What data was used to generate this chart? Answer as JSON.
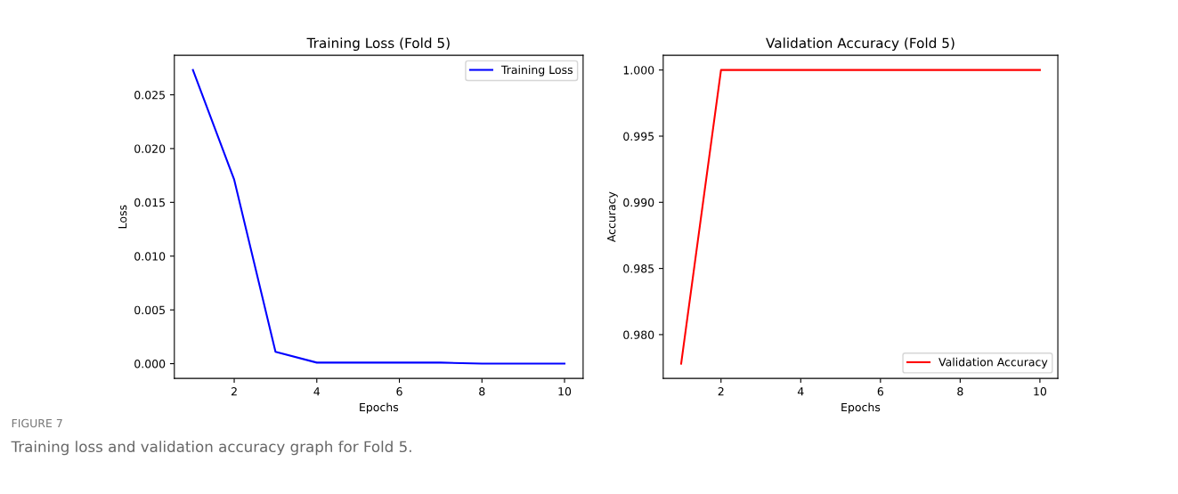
{
  "chart_data": [
    {
      "type": "line",
      "title": "Training Loss (Fold 5)",
      "xlabel": "Epochs",
      "ylabel": "Loss",
      "x": [
        1,
        2,
        3,
        4,
        5,
        6,
        7,
        8,
        9,
        10
      ],
      "series": [
        {
          "name": "Training Loss",
          "color": "#0000ff",
          "values": [
            0.0273,
            0.0171,
            0.0011,
            0.0001,
            0.0001,
            0.0001,
            0.0001,
            0.0,
            0.0,
            0.0
          ]
        }
      ],
      "xlim": [
        0.55,
        10.45
      ],
      "xticks": [
        2,
        4,
        6,
        8,
        10
      ],
      "ylim": [
        -0.00137,
        0.02867
      ],
      "yticks": [
        {
          "value": 0,
          "label": "0.000"
        },
        {
          "value": 0.005,
          "label": "0.005"
        },
        {
          "value": 0.01,
          "label": "0.010"
        },
        {
          "value": 0.015,
          "label": "0.015"
        },
        {
          "value": 0.02,
          "label": "0.020"
        },
        {
          "value": 0.025,
          "label": "0.025"
        }
      ],
      "legend": "top right",
      "grid": false,
      "annotations": [
        "FIGURE 7",
        "Training loss and validation accuracy graph for Fold 5."
      ]
    },
    {
      "type": "line",
      "title": "Validation Accuracy (Fold 5)",
      "xlabel": "Epochs",
      "ylabel": "Accuracy",
      "x": [
        1,
        2,
        3,
        4,
        5,
        6,
        7,
        8,
        9,
        10
      ],
      "series": [
        {
          "name": "Validation Accuracy",
          "color": "#ff0000",
          "values": [
            0.9778,
            1.0,
            1.0,
            1.0,
            1.0,
            1.0,
            1.0,
            1.0,
            1.0,
            1.0
          ]
        }
      ],
      "xlim": [
        0.55,
        10.45
      ],
      "xticks": [
        2,
        4,
        6,
        8,
        10
      ],
      "ylim": [
        0.97669,
        1.00111
      ],
      "yticks": [
        {
          "value": 0.98,
          "label": "0.980"
        },
        {
          "value": 0.985,
          "label": "0.985"
        },
        {
          "value": 0.99,
          "label": "0.990"
        },
        {
          "value": 0.995,
          "label": "0.995"
        },
        {
          "value": 1.0,
          "label": "1.000"
        }
      ],
      "legend": "bottom right",
      "grid": false
    }
  ]
}
